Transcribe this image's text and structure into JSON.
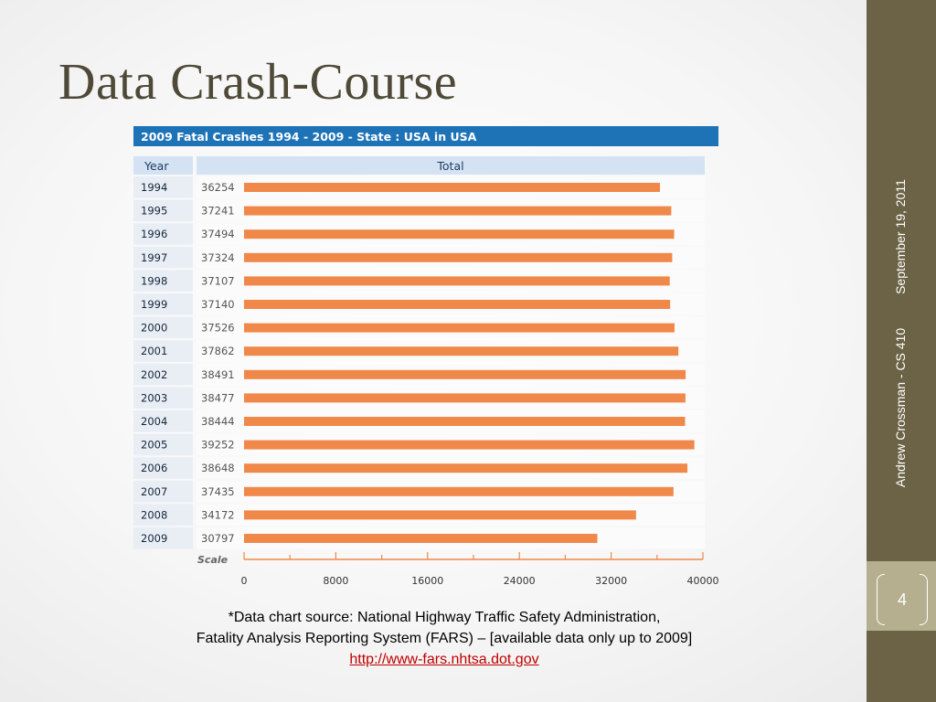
{
  "slide": {
    "title": "Data Crash-Course",
    "date": "September 19, 2011",
    "footer": "Andrew Crossman - CS 410",
    "page_number": "4"
  },
  "caption": {
    "line1": "*Data chart source: National Highway Traffic Safety Administration,",
    "line2": "Fatality Analysis Reporting System (FARS) – [available data only up to 2009]",
    "link": "http://www-fars.nhtsa.dot.gov"
  },
  "colors": {
    "bar": "#f0884a",
    "header_blue": "#1e73b7",
    "column_header": "#d3e3f4",
    "sidebar": "#6c6346",
    "sidebar_accent": "#b5af8f",
    "title": "#4f4a38"
  },
  "chart_data": {
    "type": "bar",
    "orientation": "horizontal",
    "title": "2009 Fatal Crashes 1994 - 2009 - State : USA in USA",
    "column_headers": [
      "Year",
      "Total"
    ],
    "categories": [
      "1994",
      "1995",
      "1996",
      "1997",
      "1998",
      "1999",
      "2000",
      "2001",
      "2002",
      "2003",
      "2004",
      "2005",
      "2006",
      "2007",
      "2008",
      "2009"
    ],
    "values": [
      36254,
      37241,
      37494,
      37324,
      37107,
      37140,
      37526,
      37862,
      38491,
      38477,
      38444,
      39252,
      38648,
      37435,
      34172,
      30797
    ],
    "scale_label": "Scale",
    "xlim": [
      0,
      40000
    ],
    "ticks": [
      0,
      8000,
      16000,
      24000,
      32000,
      40000
    ]
  }
}
